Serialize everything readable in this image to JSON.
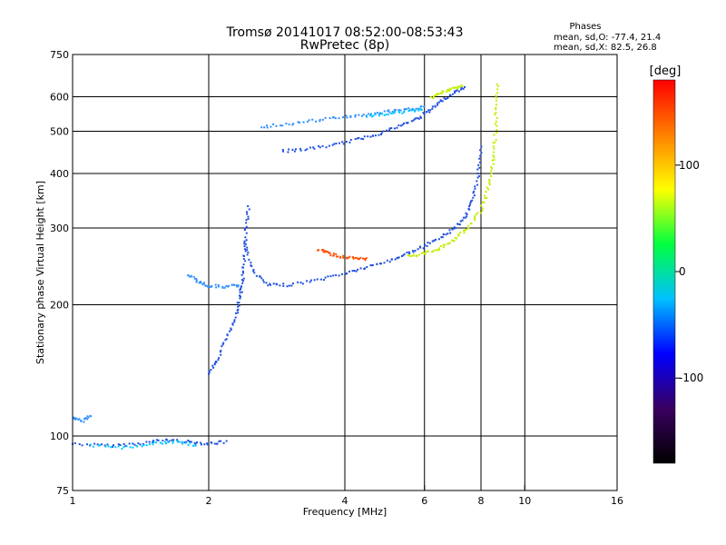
{
  "chart_data": {
    "type": "scatter",
    "title": "Tromsø 20141017 08:52:00-08:53:43",
    "subtitle": "RwPretec (8p)",
    "xlabel": "Frequency [MHz]",
    "ylabel": "Stationary phase Virtual Height [km]",
    "xscale": "log",
    "yscale": "log",
    "xlim": [
      1,
      16
    ],
    "ylim": [
      75,
      750
    ],
    "x_ticks": [
      1,
      2,
      4,
      6,
      8,
      10,
      16
    ],
    "x_tick_labels": [
      "1",
      "2",
      "4",
      "6",
      "8",
      "10",
      "16"
    ],
    "y_ticks": [
      75,
      100,
      200,
      300,
      400,
      500,
      600,
      750
    ],
    "y_tick_labels": [
      "75",
      "100",
      "200",
      "300",
      "400",
      "500",
      "600",
      "750"
    ],
    "grid": true,
    "phase_box": {
      "title": "Phases",
      "line_o": "mean, sd,O: -77.4, 21.4",
      "line_x": "mean, sd,X:  82.5, 26.8"
    },
    "colorbar": {
      "title": "[deg]",
      "range": [
        -180,
        180
      ],
      "ticks": [
        100,
        0,
        -100
      ],
      "tick_labels": [
        "100",
        "0",
        "-100"
      ],
      "stops": [
        "#000000",
        "#3a0060",
        "#0000ff",
        "#00c0ff",
        "#00ff40",
        "#ffff00",
        "#ff8000",
        "#ff0000"
      ]
    },
    "series": [
      {
        "color": "#2050e0",
        "traces": [
          [
            [
              1.0,
              96
            ],
            [
              1.2,
              95
            ],
            [
              1.4,
              96
            ],
            [
              1.6,
              98
            ],
            [
              1.8,
              97
            ],
            [
              2.0,
              96
            ],
            [
              2.2,
              97
            ]
          ],
          [
            [
              2.0,
              138
            ],
            [
              2.1,
              150
            ],
            [
              2.2,
              170
            ],
            [
              2.3,
              190
            ],
            [
              2.35,
              210
            ],
            [
              2.38,
              230
            ],
            [
              2.4,
              260
            ],
            [
              2.42,
              300
            ],
            [
              2.45,
              340
            ]
          ],
          [
            [
              2.4,
              280
            ],
            [
              2.5,
              240
            ],
            [
              2.7,
              222
            ],
            [
              3.0,
              222
            ],
            [
              3.5,
              228
            ],
            [
              4.0,
              236
            ],
            [
              4.5,
              244
            ],
            [
              5.0,
              252
            ],
            [
              5.5,
              262
            ],
            [
              6.0,
              272
            ],
            [
              6.5,
              285
            ],
            [
              7.0,
              300
            ],
            [
              7.4,
              320
            ],
            [
              7.7,
              350
            ],
            [
              7.9,
              400
            ],
            [
              8.0,
              470
            ]
          ],
          [
            [
              2.9,
              450
            ],
            [
              3.3,
              455
            ],
            [
              3.8,
              465
            ],
            [
              4.3,
              480
            ],
            [
              4.8,
              495
            ],
            [
              5.3,
              515
            ],
            [
              5.8,
              535
            ],
            [
              6.2,
              560
            ],
            [
              6.6,
              590
            ],
            [
              7.0,
              615
            ],
            [
              7.4,
              630
            ]
          ]
        ]
      },
      {
        "color": "#3090ff",
        "traces": [
          [
            [
              1.8,
              235
            ],
            [
              1.9,
              226
            ],
            [
              2.0,
              221
            ],
            [
              2.2,
              220
            ],
            [
              2.35,
              222
            ]
          ],
          [
            [
              2.6,
              510
            ],
            [
              3.0,
              520
            ],
            [
              3.5,
              530
            ],
            [
              4.0,
              540
            ],
            [
              4.5,
              545
            ],
            [
              5.0,
              555
            ],
            [
              5.5,
              560
            ],
            [
              6.0,
              570
            ]
          ],
          [
            [
              1.0,
              110
            ],
            [
              1.05,
              108
            ],
            [
              1.1,
              112
            ]
          ]
        ]
      },
      {
        "color": "#c0f000",
        "traces": [
          [
            [
              5.5,
              258
            ],
            [
              6.0,
              262
            ],
            [
              6.5,
              270
            ],
            [
              7.0,
              282
            ],
            [
              7.5,
              300
            ],
            [
              8.0,
              330
            ],
            [
              8.3,
              370
            ],
            [
              8.5,
              420
            ],
            [
              8.6,
              480
            ],
            [
              8.65,
              560
            ],
            [
              8.7,
              650
            ]
          ],
          [
            [
              6.2,
              598
            ],
            [
              6.6,
              615
            ],
            [
              7.0,
              628
            ],
            [
              7.3,
              635
            ]
          ]
        ]
      },
      {
        "color": "#ff5000",
        "traces": [
          [
            [
              3.5,
              268
            ],
            [
              3.7,
              262
            ],
            [
              3.9,
              258
            ],
            [
              4.2,
              255
            ],
            [
              4.5,
              254
            ]
          ]
        ]
      },
      {
        "color": "#00c8ff",
        "traces": [
          [
            [
              1.1,
              95
            ],
            [
              1.3,
              94
            ],
            [
              1.5,
              96
            ],
            [
              1.7,
              97
            ],
            [
              1.9,
              95
            ]
          ],
          [
            [
              4.5,
              540
            ],
            [
              5.0,
              548
            ],
            [
              5.5,
              555
            ],
            [
              6.0,
              565
            ]
          ]
        ]
      }
    ]
  }
}
